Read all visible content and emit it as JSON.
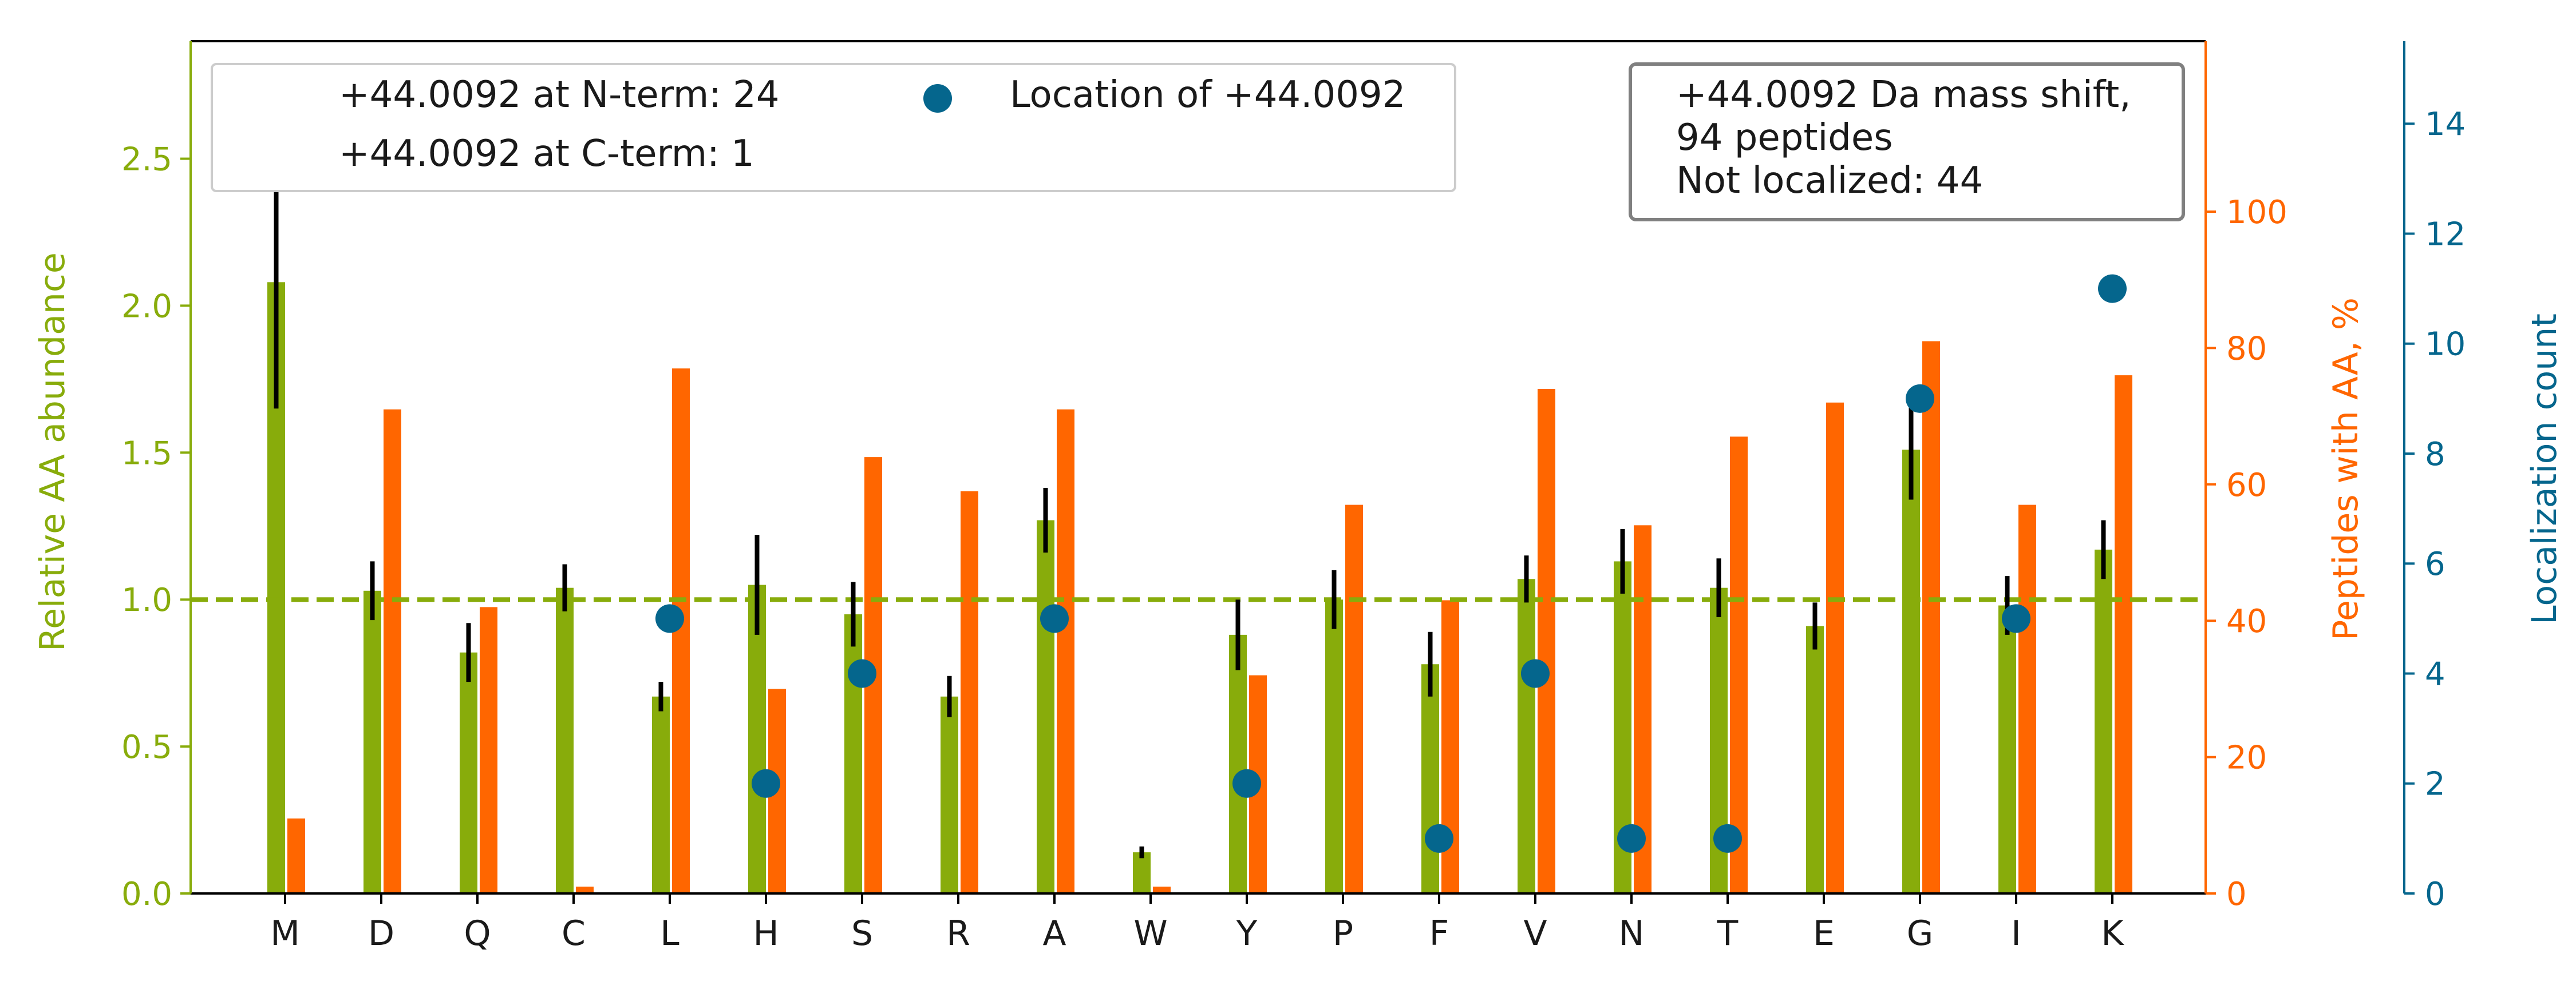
{
  "chart_data": {
    "type": "bar",
    "categories": [
      "M",
      "D",
      "Q",
      "C",
      "L",
      "H",
      "S",
      "R",
      "A",
      "W",
      "Y",
      "P",
      "F",
      "V",
      "N",
      "T",
      "E",
      "G",
      "I",
      "K"
    ],
    "colors": {
      "abundance": "#88ac0b",
      "peptides": "#ff6600",
      "localization": "#05668d",
      "errorbar": "#000000",
      "reference": "#88ac0b"
    },
    "series": [
      {
        "axis": "left",
        "values": [
          2.08,
          1.03,
          0.82,
          1.04,
          0.67,
          1.05,
          0.95,
          0.67,
          1.27,
          0.14,
          0.88,
          1.0,
          0.78,
          1.07,
          1.13,
          1.04,
          0.91,
          1.51,
          0.98,
          1.17
        ],
        "errors": [
          0.43,
          0.1,
          0.1,
          0.08,
          0.05,
          0.17,
          0.11,
          0.07,
          0.11,
          0.02,
          0.12,
          0.1,
          0.11,
          0.08,
          0.11,
          0.1,
          0.08,
          0.17,
          0.1,
          0.1
        ]
      },
      {
        "axis": "middle",
        "values": [
          11,
          71,
          42,
          1,
          77,
          30,
          64,
          59,
          71,
          1,
          32,
          57,
          43,
          74,
          54,
          67,
          72,
          81,
          57,
          76
        ]
      },
      {
        "axis": "right",
        "type": "scatter",
        "name": "Location of +44.0092",
        "points": [
          {
            "x": "L",
            "y": 5
          },
          {
            "x": "H",
            "y": 2
          },
          {
            "x": "S",
            "y": 4
          },
          {
            "x": "A",
            "y": 5
          },
          {
            "x": "Y",
            "y": 2
          },
          {
            "x": "F",
            "y": 1
          },
          {
            "x": "V",
            "y": 4
          },
          {
            "x": "N",
            "y": 1
          },
          {
            "x": "T",
            "y": 1
          },
          {
            "x": "G",
            "y": 9
          },
          {
            "x": "I",
            "y": 5
          },
          {
            "x": "K",
            "y": 11
          }
        ]
      }
    ],
    "reference_line": {
      "axis": "left",
      "y": 1.0,
      "style": "dashed"
    },
    "axes": {
      "left": {
        "label": "Relative AA abundance",
        "ylim": [
          0,
          2.9
        ],
        "ticks": [
          "0.0",
          "0.5",
          "1.0",
          "1.5",
          "2.0",
          "2.5"
        ],
        "tick_values": [
          0,
          0.5,
          1.0,
          1.5,
          2.0,
          2.5
        ]
      },
      "middle": {
        "label": "Peptides with AA, %",
        "ylim": [
          0,
          125
        ],
        "ticks": [
          "0",
          "20",
          "40",
          "60",
          "80",
          "100"
        ],
        "tick_values": [
          0,
          20,
          40,
          60,
          80,
          100
        ]
      },
      "right": {
        "label": "Localization count",
        "ylim": [
          0,
          15.5
        ],
        "ticks": [
          "0",
          "2",
          "4",
          "6",
          "8",
          "10",
          "12",
          "14"
        ],
        "tick_values": [
          0,
          2,
          4,
          6,
          8,
          10,
          12,
          14
        ]
      }
    },
    "legend": {
      "placement": "top-left",
      "items": [
        "+44.0092 at N-term: 24",
        "+44.0092 at C-term: 1",
        "Location of +44.0092"
      ]
    },
    "info_box": {
      "placement": "top-right",
      "lines": [
        "+44.0092 Da mass shift,",
        "94 peptides",
        "Not localized: 44"
      ]
    }
  }
}
